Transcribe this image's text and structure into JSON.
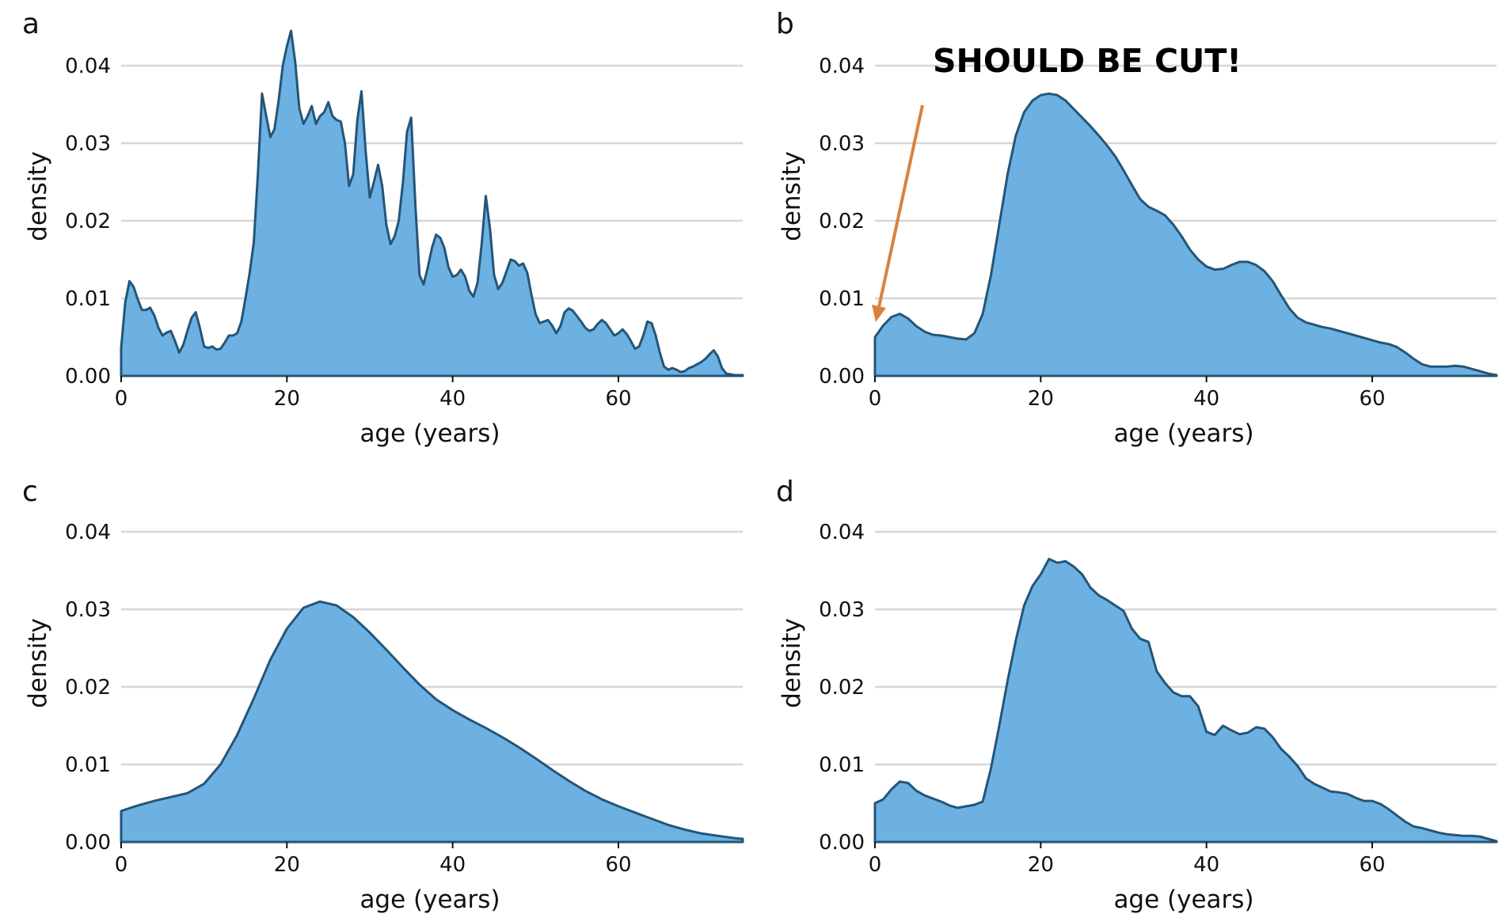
{
  "chart_data": [
    {
      "panel": "a",
      "type": "area",
      "xlabel": "age (years)",
      "ylabel": "density",
      "xlim": [
        0,
        75
      ],
      "ylim": [
        0,
        0.045
      ],
      "xticks": [
        0,
        20,
        40,
        60
      ],
      "yticks": [
        "0.00",
        "0.01",
        "0.02",
        "0.03",
        "0.04"
      ],
      "grid": true,
      "x": [
        0,
        0.5,
        1,
        1.5,
        2,
        2.5,
        3,
        3.5,
        4,
        4.5,
        5,
        5.5,
        6,
        6.5,
        7,
        7.5,
        8,
        8.5,
        9,
        9.5,
        10,
        10.5,
        11,
        11.5,
        12,
        12.5,
        13,
        13.5,
        14,
        14.5,
        15,
        15.5,
        16,
        16.5,
        17,
        17.5,
        18,
        18.5,
        19,
        19.5,
        20,
        20.5,
        21,
        21.5,
        22,
        22.5,
        23,
        23.5,
        24,
        24.5,
        25,
        25.5,
        26,
        26.5,
        27,
        27.5,
        28,
        28.5,
        29,
        29.5,
        30,
        30.5,
        31,
        31.5,
        32,
        32.5,
        33,
        33.5,
        34,
        34.5,
        35,
        35.5,
        36,
        36.5,
        37,
        37.5,
        38,
        38.5,
        39,
        39.5,
        40,
        40.5,
        41,
        41.5,
        42,
        42.5,
        43,
        43.5,
        44,
        44.5,
        45,
        45.5,
        46,
        46.5,
        47,
        47.5,
        48,
        48.5,
        49,
        49.5,
        50,
        50.5,
        51,
        51.5,
        52,
        52.5,
        53,
        53.5,
        54,
        54.5,
        55,
        55.5,
        56,
        56.5,
        57,
        57.5,
        58,
        58.5,
        59,
        59.5,
        60,
        60.5,
        61,
        61.5,
        62,
        62.5,
        63,
        63.5,
        64,
        64.5,
        65,
        65.5,
        66,
        66.5,
        67,
        67.5,
        68,
        68.5,
        69,
        69.5,
        70,
        70.5,
        71,
        71.5,
        72,
        72.5,
        73,
        73.5,
        74,
        74.5,
        75
      ],
      "y": [
        0.0036,
        0.0095,
        0.0122,
        0.0115,
        0.0099,
        0.0085,
        0.0085,
        0.0088,
        0.0078,
        0.0062,
        0.0052,
        0.0056,
        0.0058,
        0.0045,
        0.003,
        0.004,
        0.0058,
        0.0075,
        0.0082,
        0.0062,
        0.0038,
        0.0036,
        0.0038,
        0.0034,
        0.0035,
        0.0043,
        0.0052,
        0.0052,
        0.0055,
        0.007,
        0.01,
        0.0132,
        0.0172,
        0.026,
        0.0364,
        0.0335,
        0.0308,
        0.0318,
        0.0355,
        0.04,
        0.0425,
        0.0445,
        0.0405,
        0.0345,
        0.0325,
        0.0335,
        0.0348,
        0.0325,
        0.0335,
        0.034,
        0.0353,
        0.0335,
        0.033,
        0.0328,
        0.03,
        0.0245,
        0.026,
        0.033,
        0.0367,
        0.029,
        0.023,
        0.025,
        0.0272,
        0.0245,
        0.0195,
        0.017,
        0.018,
        0.02,
        0.025,
        0.0315,
        0.0333,
        0.022,
        0.013,
        0.0118,
        0.014,
        0.0165,
        0.0182,
        0.0178,
        0.0165,
        0.014,
        0.0128,
        0.013,
        0.0137,
        0.0128,
        0.011,
        0.0102,
        0.012,
        0.017,
        0.0232,
        0.019,
        0.013,
        0.0112,
        0.012,
        0.0135,
        0.015,
        0.0148,
        0.0142,
        0.0145,
        0.0133,
        0.0105,
        0.008,
        0.0068,
        0.007,
        0.0072,
        0.0065,
        0.0055,
        0.0064,
        0.0082,
        0.0087,
        0.0084,
        0.0077,
        0.007,
        0.0062,
        0.0058,
        0.006,
        0.0067,
        0.0072,
        0.0068,
        0.006,
        0.0052,
        0.0055,
        0.006,
        0.0054,
        0.0045,
        0.0035,
        0.0038,
        0.0052,
        0.007,
        0.0068,
        0.0052,
        0.003,
        0.0012,
        0.0008,
        0.001,
        0.0008,
        0.0005,
        0.0006,
        0.001,
        0.0012,
        0.0015,
        0.0018,
        0.0022,
        0.0028,
        0.0033,
        0.0025,
        0.001,
        0.0003,
        0.0002,
        0.0001,
        0.0001,
        0.0001
      ]
    },
    {
      "panel": "b",
      "type": "area",
      "xlabel": "age (years)",
      "ylabel": "density",
      "xlim": [
        0,
        75
      ],
      "ylim": [
        0,
        0.045
      ],
      "xticks": [
        0,
        20,
        40,
        60
      ],
      "yticks": [
        "0.00",
        "0.01",
        "0.02",
        "0.03",
        "0.04"
      ],
      "grid": true,
      "x": [
        0,
        1,
        2,
        3,
        4,
        5,
        6,
        7,
        8,
        9,
        10,
        11,
        12,
        13,
        14,
        15,
        16,
        17,
        18,
        19,
        20,
        21,
        22,
        23,
        24,
        25,
        26,
        27,
        28,
        29,
        30,
        31,
        32,
        33,
        34,
        35,
        36,
        37,
        38,
        39,
        40,
        41,
        42,
        43,
        44,
        45,
        46,
        47,
        48,
        49,
        50,
        51,
        52,
        53,
        54,
        55,
        56,
        57,
        58,
        59,
        60,
        61,
        62,
        63,
        64,
        65,
        66,
        67,
        68,
        69,
        70,
        71,
        72,
        73,
        74,
        75
      ],
      "y": [
        0.005,
        0.0065,
        0.0076,
        0.008,
        0.0074,
        0.0064,
        0.0057,
        0.0053,
        0.0052,
        0.005,
        0.0048,
        0.0047,
        0.0055,
        0.008,
        0.013,
        0.0195,
        0.026,
        0.031,
        0.034,
        0.0355,
        0.0362,
        0.0364,
        0.0362,
        0.0355,
        0.0344,
        0.0333,
        0.0322,
        0.031,
        0.0297,
        0.0283,
        0.0265,
        0.0246,
        0.0228,
        0.0218,
        0.0213,
        0.0207,
        0.0195,
        0.018,
        0.0163,
        0.015,
        0.0141,
        0.0137,
        0.0138,
        0.0143,
        0.0147,
        0.0147,
        0.0143,
        0.0135,
        0.0122,
        0.0104,
        0.0087,
        0.0075,
        0.0069,
        0.0066,
        0.0063,
        0.0061,
        0.0058,
        0.0055,
        0.0052,
        0.0049,
        0.0046,
        0.0043,
        0.0041,
        0.0037,
        0.003,
        0.0022,
        0.0015,
        0.0012,
        0.0012,
        0.0012,
        0.0013,
        0.0012,
        0.0009,
        0.0006,
        0.0003,
        0.0001
      ]
    },
    {
      "panel": "c",
      "type": "area",
      "xlabel": "age (years)",
      "ylabel": "density",
      "xlim": [
        0,
        75
      ],
      "ylim": [
        0,
        0.045
      ],
      "xticks": [
        0,
        20,
        40,
        60
      ],
      "yticks": [
        "0.00",
        "0.01",
        "0.02",
        "0.03",
        "0.04"
      ],
      "grid": true,
      "x": [
        0,
        2,
        4,
        6,
        8,
        10,
        12,
        14,
        16,
        18,
        20,
        22,
        24,
        26,
        28,
        30,
        32,
        34,
        36,
        38,
        40,
        42,
        44,
        46,
        48,
        50,
        52,
        54,
        56,
        58,
        60,
        62,
        64,
        66,
        68,
        70,
        72,
        74,
        75
      ],
      "y": [
        0.004,
        0.0047,
        0.0053,
        0.0058,
        0.0063,
        0.0075,
        0.01,
        0.0138,
        0.0185,
        0.0235,
        0.0275,
        0.0302,
        0.031,
        0.0305,
        0.029,
        0.027,
        0.0248,
        0.0225,
        0.0203,
        0.0184,
        0.017,
        0.0158,
        0.0147,
        0.0135,
        0.0122,
        0.0108,
        0.0093,
        0.0079,
        0.0066,
        0.0055,
        0.0046,
        0.0038,
        0.003,
        0.0022,
        0.0016,
        0.0011,
        0.0008,
        0.0005,
        0.0004
      ]
    },
    {
      "panel": "d",
      "type": "area",
      "xlabel": "age (years)",
      "ylabel": "density",
      "xlim": [
        0,
        75
      ],
      "ylim": [
        0,
        0.045
      ],
      "xticks": [
        0,
        20,
        40,
        60
      ],
      "yticks": [
        "0.00",
        "0.01",
        "0.02",
        "0.03",
        "0.04"
      ],
      "grid": true,
      "x": [
        0,
        1,
        2,
        3,
        4,
        5,
        6,
        7,
        8,
        9,
        10,
        11,
        12,
        13,
        14,
        15,
        16,
        17,
        18,
        19,
        20,
        21,
        22,
        23,
        24,
        25,
        26,
        27,
        28,
        29,
        30,
        31,
        32,
        33,
        34,
        35,
        36,
        37,
        38,
        39,
        40,
        41,
        42,
        43,
        44,
        45,
        46,
        47,
        48,
        49,
        50,
        51,
        52,
        53,
        54,
        55,
        56,
        57,
        58,
        59,
        60,
        61,
        62,
        63,
        64,
        65,
        66,
        67,
        68,
        69,
        70,
        71,
        72,
        73,
        74,
        75
      ],
      "y": [
        0.005,
        0.0055,
        0.0068,
        0.0078,
        0.0076,
        0.0066,
        0.006,
        0.0056,
        0.0052,
        0.0047,
        0.0044,
        0.0046,
        0.0048,
        0.0052,
        0.0095,
        0.015,
        0.0208,
        0.026,
        0.0305,
        0.033,
        0.0345,
        0.0365,
        0.036,
        0.0362,
        0.0355,
        0.0345,
        0.0328,
        0.0318,
        0.0312,
        0.0305,
        0.0298,
        0.0275,
        0.0262,
        0.0258,
        0.022,
        0.0205,
        0.0193,
        0.0188,
        0.0188,
        0.0175,
        0.0142,
        0.0138,
        0.015,
        0.0144,
        0.0139,
        0.0141,
        0.0148,
        0.0146,
        0.0135,
        0.012,
        0.011,
        0.0098,
        0.0082,
        0.0075,
        0.007,
        0.0065,
        0.0064,
        0.0062,
        0.0057,
        0.0053,
        0.0053,
        0.0049,
        0.0042,
        0.0034,
        0.0026,
        0.002,
        0.0018,
        0.0015,
        0.0012,
        0.001,
        0.0009,
        0.0008,
        0.0008,
        0.0007,
        0.0004,
        0.0001
      ]
    }
  ],
  "annotation": {
    "text": "SHOULD BE CUT!",
    "color": "#d9823c"
  }
}
